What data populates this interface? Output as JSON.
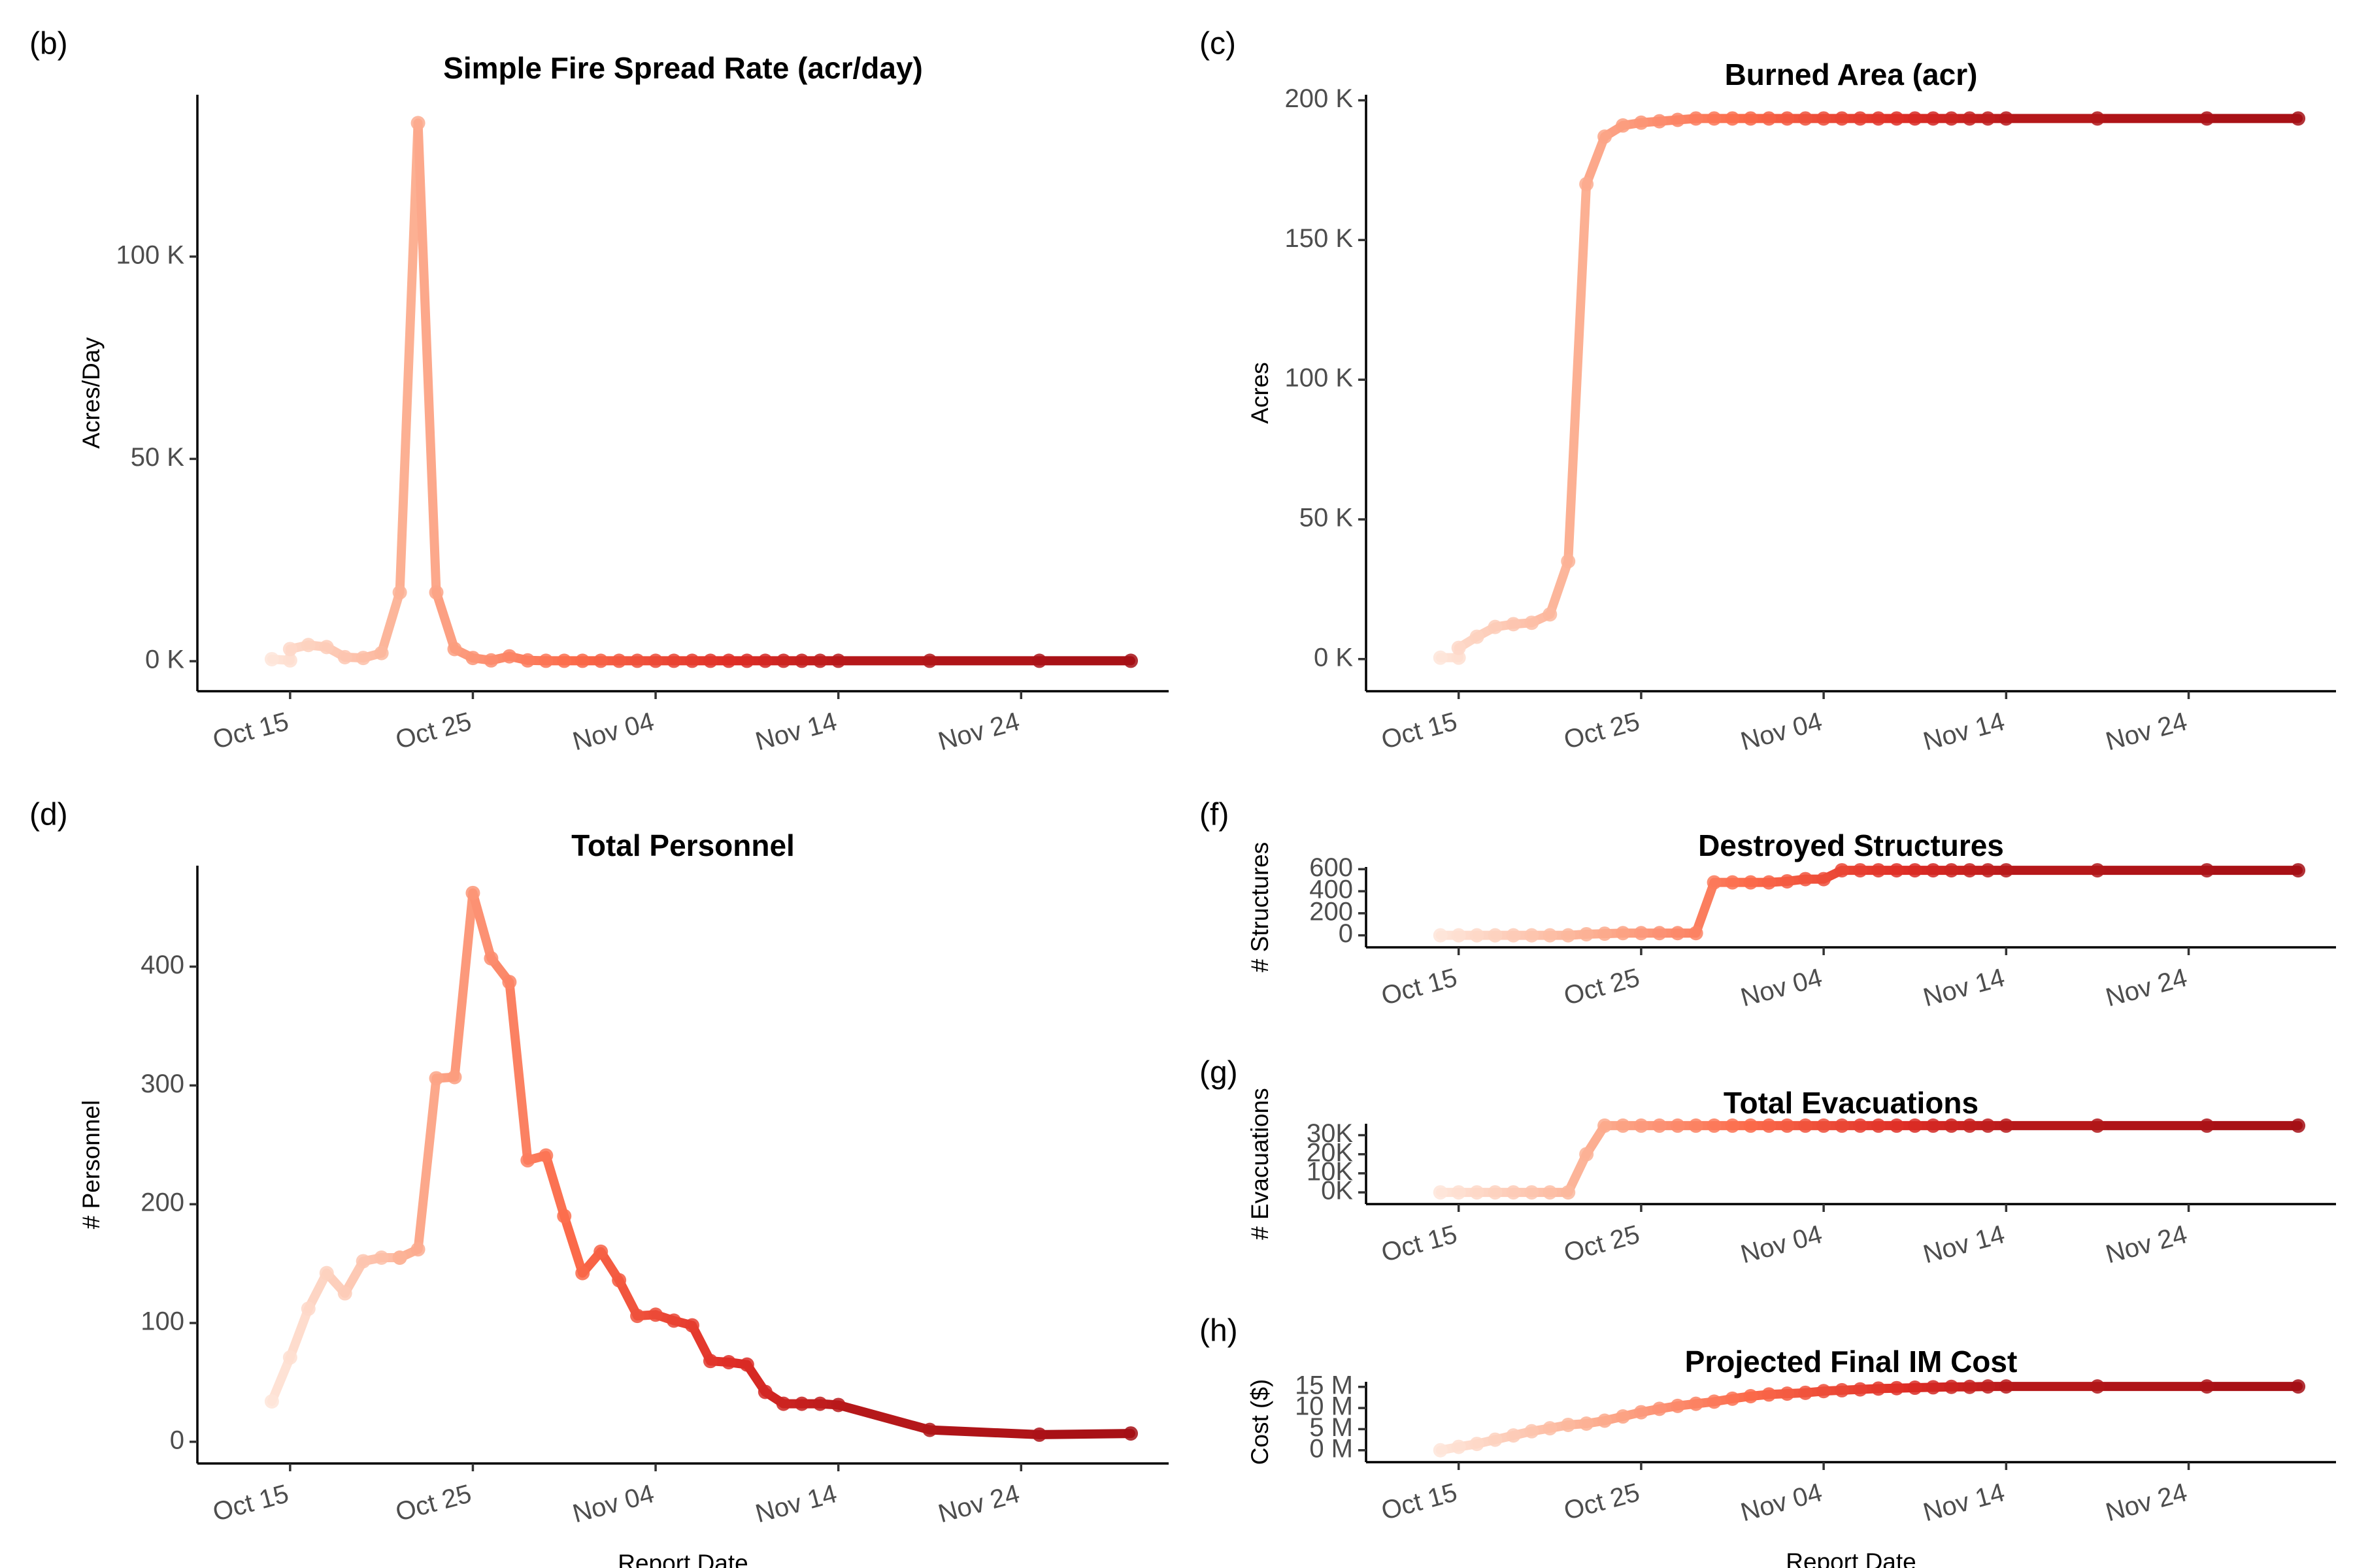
{
  "colors": {
    "series_start": "#fee5d9",
    "series_mid1": "#fcae91",
    "series_mid2": "#fb6a4a",
    "series_mid3": "#de2d26",
    "series_end": "#a50f15"
  },
  "x_axis": {
    "xlabel": "Report Date",
    "range": [
      "2019-10-11",
      "2019-12-01"
    ],
    "ticks": [
      "2019-10-15",
      "2019-10-25",
      "2019-11-04",
      "2019-11-14",
      "2019-11-24"
    ],
    "tick_labels": [
      "Oct 15",
      "Oct 25",
      "Nov 04",
      "Nov 14",
      "Nov 24"
    ]
  },
  "chart_data": [
    {
      "id": "b",
      "panel_label": "(b)",
      "type": "line",
      "title": "Simple Fire Spread Rate (acr/day)",
      "ylabel": "Acres/Day",
      "ylim": [
        -5000,
        140000
      ],
      "yticks": [
        0,
        50000,
        100000
      ],
      "ytick_labels": [
        "0 K",
        "50 K",
        "100 K"
      ],
      "x": [
        "2019-10-14",
        "2019-10-15",
        "2019-10-15",
        "2019-10-16",
        "2019-10-17",
        "2019-10-18",
        "2019-10-19",
        "2019-10-20",
        "2019-10-21",
        "2019-10-22",
        "2019-10-23",
        "2019-10-24",
        "2019-10-25",
        "2019-10-26",
        "2019-10-27",
        "2019-10-28",
        "2019-10-29",
        "2019-10-30",
        "2019-10-31",
        "2019-11-01",
        "2019-11-02",
        "2019-11-03",
        "2019-11-04",
        "2019-11-05",
        "2019-11-06",
        "2019-11-07",
        "2019-11-08",
        "2019-11-09",
        "2019-11-10",
        "2019-11-11",
        "2019-11-12",
        "2019-11-13",
        "2019-11-14",
        "2019-11-19",
        "2019-11-25",
        "2019-11-30"
      ],
      "y": [
        500,
        200,
        3000,
        4000,
        3500,
        1000,
        800,
        2000,
        17000,
        133000,
        17000,
        3000,
        800,
        200,
        1200,
        200,
        100,
        100,
        100,
        100,
        100,
        100,
        100,
        100,
        100,
        100,
        100,
        100,
        100,
        100,
        100,
        100,
        100,
        100,
        100,
        100
      ]
    },
    {
      "id": "c",
      "panel_label": "(c)",
      "type": "line",
      "title": "Burned Area (acr)",
      "ylabel": "Acres",
      "ylim": [
        -8000,
        202000
      ],
      "yticks": [
        0,
        50000,
        100000,
        150000,
        200000
      ],
      "ytick_labels": [
        "0 K",
        "50 K",
        "100 K",
        "150 K",
        "200 K"
      ],
      "x": [
        "2019-10-14",
        "2019-10-15",
        "2019-10-15",
        "2019-10-16",
        "2019-10-17",
        "2019-10-18",
        "2019-10-19",
        "2019-10-20",
        "2019-10-21",
        "2019-10-22",
        "2019-10-23",
        "2019-10-24",
        "2019-10-25",
        "2019-10-26",
        "2019-10-27",
        "2019-10-28",
        "2019-10-29",
        "2019-10-30",
        "2019-10-31",
        "2019-11-01",
        "2019-11-02",
        "2019-11-03",
        "2019-11-04",
        "2019-11-05",
        "2019-11-06",
        "2019-11-07",
        "2019-11-08",
        "2019-11-09",
        "2019-11-10",
        "2019-11-11",
        "2019-11-12",
        "2019-11-13",
        "2019-11-14",
        "2019-11-19",
        "2019-11-25",
        "2019-11-30"
      ],
      "y": [
        500,
        500,
        4000,
        8000,
        11500,
        12500,
        13000,
        16000,
        35000,
        170000,
        187000,
        191000,
        192000,
        192500,
        193000,
        193500,
        193500,
        193500,
        193500,
        193500,
        193500,
        193500,
        193500,
        193500,
        193500,
        193500,
        193500,
        193500,
        193500,
        193500,
        193500,
        193500,
        193500,
        193500,
        193500,
        193500
      ]
    },
    {
      "id": "d",
      "panel_label": "(d)",
      "type": "line",
      "title": "Total Personnel",
      "ylabel": "# Personnel",
      "ylim": [
        -10,
        485
      ],
      "yticks": [
        0,
        100,
        200,
        300,
        400
      ],
      "ytick_labels": [
        "0",
        "100",
        "200",
        "300",
        "400"
      ],
      "x": [
        "2019-10-14",
        "2019-10-15",
        "2019-10-16",
        "2019-10-17",
        "2019-10-18",
        "2019-10-19",
        "2019-10-20",
        "2019-10-21",
        "2019-10-21",
        "2019-10-22",
        "2019-10-23",
        "2019-10-24",
        "2019-10-25",
        "2019-10-26",
        "2019-10-27",
        "2019-10-28",
        "2019-10-29",
        "2019-10-30",
        "2019-10-31",
        "2019-11-01",
        "2019-11-02",
        "2019-11-03",
        "2019-11-04",
        "2019-11-05",
        "2019-11-06",
        "2019-11-07",
        "2019-11-08",
        "2019-11-09",
        "2019-11-10",
        "2019-11-11",
        "2019-11-12",
        "2019-11-13",
        "2019-11-14",
        "2019-11-19",
        "2019-11-25",
        "2019-11-30"
      ],
      "y": [
        34,
        71,
        112,
        142,
        125,
        152,
        155,
        155,
        155,
        162,
        306,
        307,
        462,
        407,
        387,
        237,
        241,
        190,
        142,
        160,
        136,
        106,
        107,
        102,
        98,
        68,
        67,
        65,
        42,
        32,
        32,
        32,
        31,
        10,
        6,
        7
      ]
    },
    {
      "id": "f",
      "panel_label": "(f)",
      "type": "line",
      "title": "Destroyed Structures",
      "ylabel": "# Structures",
      "ylim": [
        -20,
        620
      ],
      "yticks": [
        0,
        200,
        400,
        600
      ],
      "ytick_labels": [
        "0",
        "200",
        "400",
        "600"
      ],
      "x": [
        "2019-10-14",
        "2019-10-15",
        "2019-10-16",
        "2019-10-17",
        "2019-10-18",
        "2019-10-19",
        "2019-10-20",
        "2019-10-21",
        "2019-10-22",
        "2019-10-23",
        "2019-10-24",
        "2019-10-25",
        "2019-10-26",
        "2019-10-27",
        "2019-10-28",
        "2019-10-29",
        "2019-10-30",
        "2019-10-31",
        "2019-11-01",
        "2019-11-02",
        "2019-11-03",
        "2019-11-04",
        "2019-11-05",
        "2019-11-06",
        "2019-11-07",
        "2019-11-08",
        "2019-11-09",
        "2019-11-10",
        "2019-11-11",
        "2019-11-12",
        "2019-11-13",
        "2019-11-14",
        "2019-11-19",
        "2019-11-25",
        "2019-11-30"
      ],
      "y": [
        0,
        0,
        0,
        0,
        0,
        0,
        0,
        0,
        10,
        15,
        20,
        20,
        20,
        20,
        20,
        480,
        480,
        480,
        480,
        490,
        510,
        510,
        590,
        590,
        590,
        590,
        590,
        590,
        590,
        590,
        590,
        590,
        590,
        590,
        590
      ]
    },
    {
      "id": "g",
      "panel_label": "(g)",
      "type": "line",
      "title": "Total Evacuations",
      "ylabel": "# Evacuations",
      "ylim": [
        -1000,
        36000
      ],
      "yticks": [
        0,
        10000,
        20000,
        30000
      ],
      "ytick_labels": [
        "0K",
        "10K",
        "20K",
        "30K"
      ],
      "x": [
        "2019-10-14",
        "2019-10-15",
        "2019-10-16",
        "2019-10-17",
        "2019-10-18",
        "2019-10-19",
        "2019-10-20",
        "2019-10-21",
        "2019-10-22",
        "2019-10-23",
        "2019-10-24",
        "2019-10-25",
        "2019-10-26",
        "2019-10-27",
        "2019-10-28",
        "2019-10-29",
        "2019-10-30",
        "2019-10-31",
        "2019-11-01",
        "2019-11-02",
        "2019-11-03",
        "2019-11-04",
        "2019-11-05",
        "2019-11-06",
        "2019-11-07",
        "2019-11-08",
        "2019-11-09",
        "2019-11-10",
        "2019-11-11",
        "2019-11-12",
        "2019-11-13",
        "2019-11-14",
        "2019-11-19",
        "2019-11-25",
        "2019-11-30"
      ],
      "y": [
        0,
        0,
        0,
        0,
        0,
        0,
        0,
        0,
        20000,
        35000,
        35000,
        35000,
        35000,
        35000,
        35000,
        35000,
        35000,
        35000,
        35000,
        35000,
        35000,
        35000,
        35000,
        35000,
        35000,
        35000,
        35000,
        35000,
        35000,
        35000,
        35000,
        35000,
        35000,
        35000,
        35000
      ]
    },
    {
      "id": "h",
      "panel_label": "(h)",
      "type": "line",
      "title": "Projected Final IM Cost",
      "ylabel": "Cost ($)",
      "ylim": [
        -500000,
        16200000
      ],
      "yticks": [
        0,
        5000000,
        10000000,
        15000000
      ],
      "ytick_labels": [
        "0 M",
        "5 M",
        "10 M",
        "15 M"
      ],
      "x": [
        "2019-10-14",
        "2019-10-15",
        "2019-10-16",
        "2019-10-17",
        "2019-10-18",
        "2019-10-19",
        "2019-10-20",
        "2019-10-21",
        "2019-10-22",
        "2019-10-23",
        "2019-10-24",
        "2019-10-25",
        "2019-10-26",
        "2019-10-27",
        "2019-10-28",
        "2019-10-29",
        "2019-10-30",
        "2019-10-31",
        "2019-11-01",
        "2019-11-02",
        "2019-11-03",
        "2019-11-04",
        "2019-11-05",
        "2019-11-06",
        "2019-11-07",
        "2019-11-08",
        "2019-11-09",
        "2019-11-10",
        "2019-11-11",
        "2019-11-12",
        "2019-11-13",
        "2019-11-14",
        "2019-11-19",
        "2019-11-25",
        "2019-11-30"
      ],
      "y": [
        0,
        800000,
        1500000,
        2500000,
        3500000,
        4500000,
        5200000,
        6000000,
        6300000,
        7000000,
        8000000,
        9000000,
        9800000,
        10500000,
        11000000,
        11500000,
        12200000,
        12800000,
        13200000,
        13400000,
        13600000,
        14000000,
        14200000,
        14400000,
        14600000,
        14700000,
        14800000,
        14900000,
        15000000,
        15000000,
        15100000,
        15100000,
        15100000,
        15100000,
        15100000
      ]
    }
  ]
}
